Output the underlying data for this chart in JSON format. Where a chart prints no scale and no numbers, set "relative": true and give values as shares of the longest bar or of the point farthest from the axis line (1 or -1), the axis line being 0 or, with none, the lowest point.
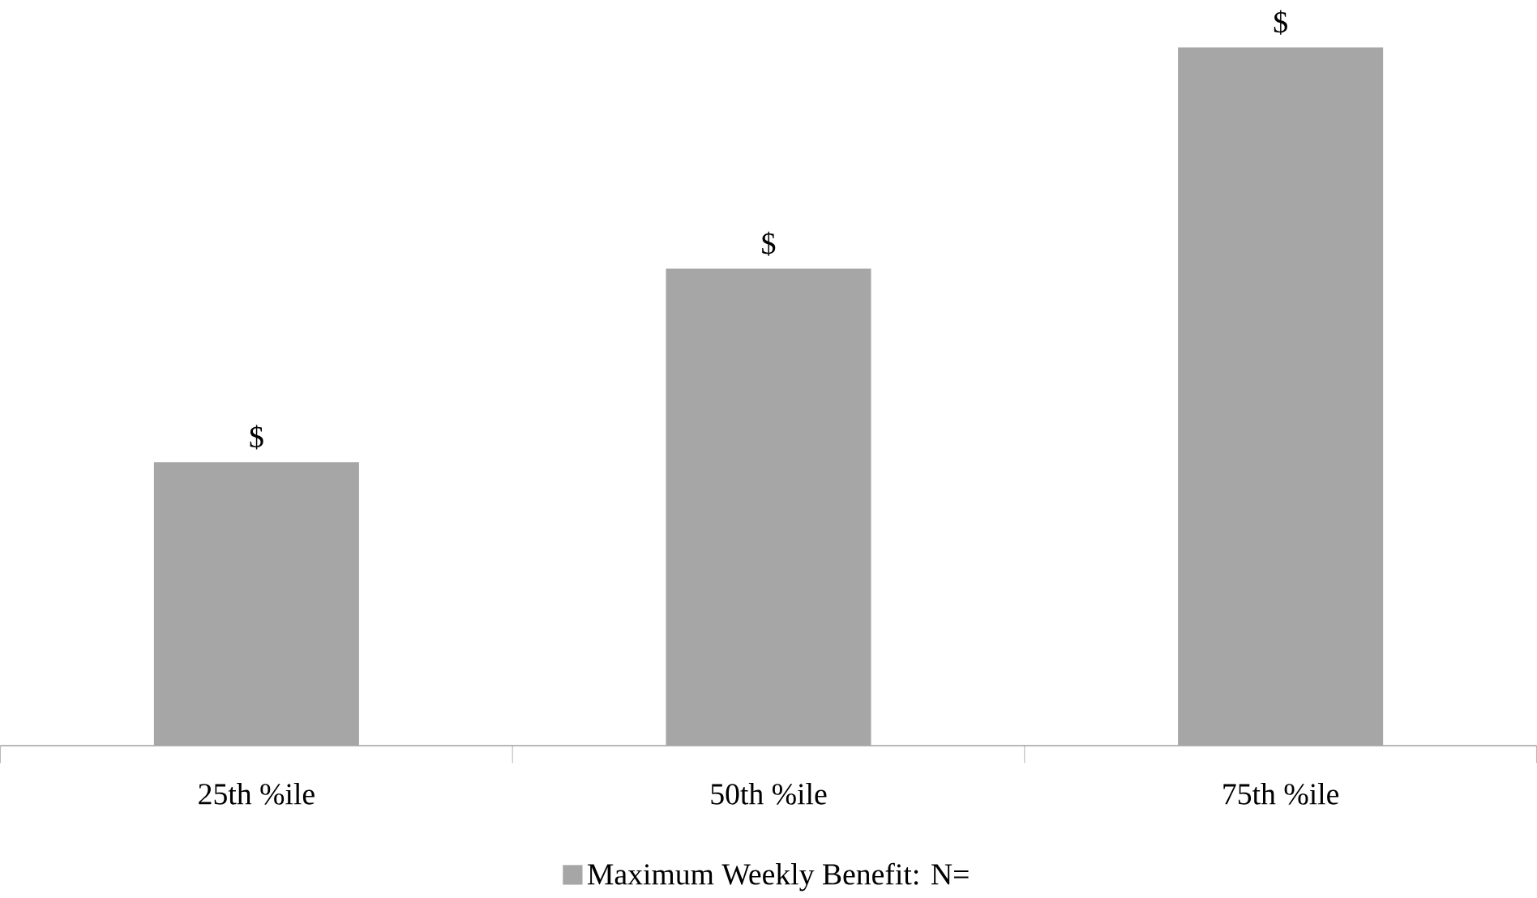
{
  "chart_data": {
    "type": "bar",
    "relative": true,
    "categories": [
      "25th %ile",
      "50th %ile",
      "75th %ile"
    ],
    "series": [
      {
        "name": "Maximum Weekly Benefit: N=",
        "color": "#a6a6a6",
        "values": [
          0.406,
          0.683,
          1
        ]
      }
    ],
    "value_labels": [
      "$",
      "$",
      "$"
    ],
    "legend": "bottom"
  }
}
